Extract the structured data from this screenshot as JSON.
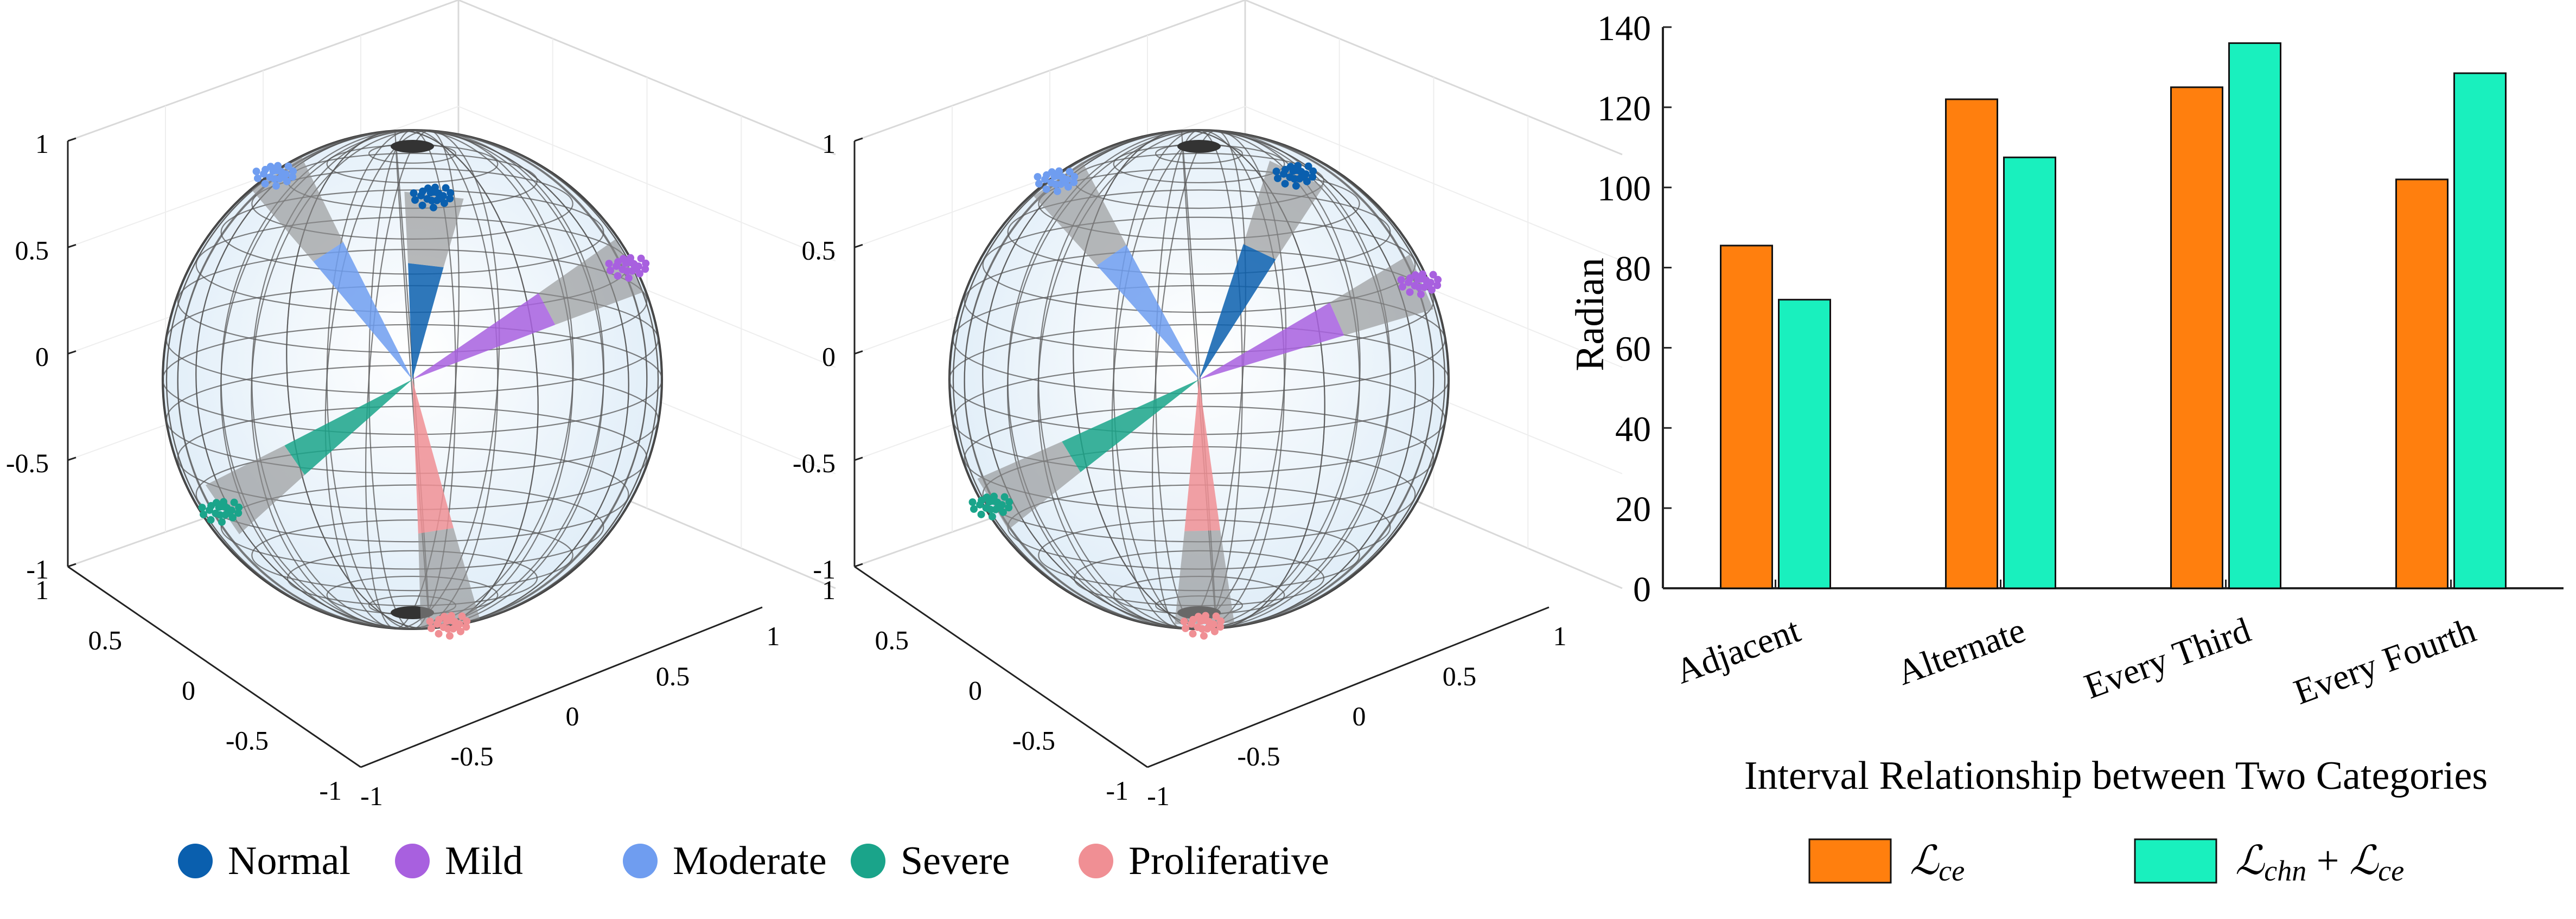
{
  "spheres": {
    "axis_ticks": [
      "1",
      "0.5",
      "0",
      "-0.5",
      "-1"
    ],
    "colors": {
      "Normal": "#0a5fae",
      "Mild": "#a860df",
      "Moderate": "#6f9df0",
      "Severe": "#1aa48a",
      "Proliferative": "#f08f94",
      "trail": "#8c8c8c"
    }
  },
  "sphere_legend": {
    "entries": [
      {
        "label": "Normal",
        "color": "#0a5fae"
      },
      {
        "label": "Mild",
        "color": "#a860df"
      },
      {
        "label": "Moderate",
        "color": "#6f9df0"
      },
      {
        "label": "Severe",
        "color": "#1aa48a"
      },
      {
        "label": "Proliferative",
        "color": "#f08f94"
      }
    ]
  },
  "chart_data": {
    "type": "bar",
    "categories": [
      "Adjacent",
      "Alternate",
      "Every Third",
      "Every Fourth"
    ],
    "series": [
      {
        "name": "ℒce",
        "color": "#ff7f0e",
        "values": [
          85.5,
          122,
          125,
          102
        ]
      },
      {
        "name": "ℒchn + ℒce",
        "color": "#19f0be",
        "values": [
          72,
          107.5,
          136,
          128.5
        ]
      }
    ],
    "xlabel": "Interval Relationship between Two Categories",
    "ylabel": "Radian",
    "ylim": [
      0,
      140
    ],
    "yticks": [
      "0",
      "20",
      "40",
      "60",
      "80",
      "100",
      "120",
      "140"
    ],
    "legend_position": "bottom",
    "grid": false
  },
  "bar_legend": {
    "items": [
      {
        "label_main": "ℒ",
        "label_sub": "ce",
        "color": "#ff7f0e"
      },
      {
        "label_main": "ℒ",
        "label_sub": "chn",
        "plus": " + ",
        "label_main2": "ℒ",
        "label_sub2": "ce",
        "color": "#19f0be"
      }
    ]
  }
}
